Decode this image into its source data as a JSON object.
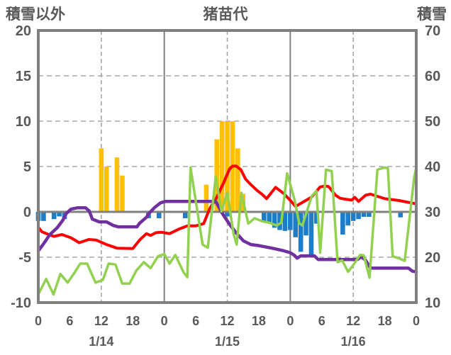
{
  "header": {
    "left_axis_label": "積雪以外",
    "title": "猪苗代",
    "right_axis_label": "積雪"
  },
  "colors": {
    "snowfall_bar": "#FFC000",
    "negative_bar": "#1D7DC8",
    "red_line": "#FF0000",
    "purple_line": "#7030A0",
    "green_line": "#92D050",
    "frame": "#808080",
    "zero_line": "#808080",
    "grid_dashed": "#A6A6A6",
    "text": "#595959",
    "background": "#FFFFFF"
  },
  "chart_data": {
    "type": "bar+line combo, dual axis",
    "title": "猪苗代",
    "x_axis": {
      "unit": "hours from 1/14 0:00",
      "range": [
        0,
        72
      ],
      "tick_hours": [
        0,
        6,
        12,
        18,
        24,
        30,
        36,
        42,
        48,
        54,
        60,
        66,
        72
      ],
      "tick_labels": [
        "0",
        "6",
        "12",
        "18",
        "0",
        "6",
        "12",
        "18",
        "0",
        "6",
        "12",
        "18",
        "0"
      ],
      "date_labels": [
        {
          "text": "1/14",
          "hour": 12
        },
        {
          "text": "1/15",
          "hour": 36
        },
        {
          "text": "1/16",
          "hour": 60
        }
      ],
      "solid_gridline_hours": [
        24,
        48
      ],
      "dashed_gridline_hours": [
        12,
        36,
        60
      ]
    },
    "left_axis": {
      "label": "積雪以外",
      "min": -10,
      "max": 20,
      "ticks": [
        20,
        15,
        10,
        5,
        0,
        -5,
        -10
      ],
      "tick_labels": [
        "20",
        "15",
        "10",
        "5",
        "0",
        "-5",
        "-10"
      ]
    },
    "right_axis": {
      "label": "積雪",
      "min": 10,
      "max": 70,
      "ticks": [
        70,
        60,
        50,
        40,
        30,
        20,
        10
      ],
      "tick_labels": [
        "70",
        "60",
        "50",
        "40",
        "30",
        "20",
        "10"
      ]
    },
    "grid": {
      "horizontal_dashed_values": [
        15,
        10,
        5,
        -5
      ],
      "zero_line_value": 0
    },
    "series": [
      {
        "name": "snowfall-bars",
        "type": "bar",
        "axis": "left",
        "color": "#FFC000",
        "points": [
          [
            12,
            7
          ],
          [
            13,
            5
          ],
          [
            15,
            6
          ],
          [
            16,
            4
          ],
          [
            32,
            3
          ],
          [
            34,
            8
          ],
          [
            35,
            10
          ],
          [
            36,
            10
          ],
          [
            37,
            10
          ],
          [
            38,
            7
          ],
          [
            39,
            2
          ]
        ]
      },
      {
        "name": "negative-bars",
        "type": "bar",
        "axis": "left",
        "color": "#1D7DC8",
        "points": [
          [
            0,
            -1
          ],
          [
            1,
            -1
          ],
          [
            3,
            -0.8
          ],
          [
            4,
            -0.5
          ],
          [
            5,
            -0.8
          ],
          [
            21,
            -0.7
          ],
          [
            23,
            -0.7
          ],
          [
            28,
            -0.7
          ],
          [
            36,
            -0.5
          ],
          [
            43,
            -1.1
          ],
          [
            44,
            -1.2
          ],
          [
            45,
            -1.75
          ],
          [
            46,
            -2
          ],
          [
            47,
            -2.1
          ],
          [
            48,
            -2
          ],
          [
            49,
            -2.8
          ],
          [
            50,
            -4.4
          ],
          [
            51,
            -2.6
          ],
          [
            52,
            -4.7
          ],
          [
            53,
            -1.3
          ],
          [
            58,
            -2.5
          ],
          [
            59,
            -1.5
          ],
          [
            60,
            -1
          ],
          [
            61,
            -0.8
          ],
          [
            62,
            -0.55
          ],
          [
            63,
            -0.55
          ],
          [
            69,
            -0.6
          ]
        ]
      },
      {
        "name": "red-line",
        "type": "line",
        "axis": "left",
        "color": "#FF0000",
        "points": [
          [
            0,
            -1.7
          ],
          [
            0.7,
            -2.2
          ],
          [
            2,
            -2.5
          ],
          [
            3,
            -2.7
          ],
          [
            4.5,
            -2.5
          ],
          [
            6.2,
            -2.85
          ],
          [
            7.8,
            -3.4
          ],
          [
            9.6,
            -3.05
          ],
          [
            11,
            -3.1
          ],
          [
            13,
            -3.6
          ],
          [
            15,
            -4
          ],
          [
            18,
            -4.05
          ],
          [
            19.3,
            -3.1
          ],
          [
            20.6,
            -2.4
          ],
          [
            21.4,
            -2.6
          ],
          [
            22.4,
            -2.3
          ],
          [
            23.5,
            -2.25
          ],
          [
            25,
            -2.4
          ],
          [
            26.8,
            -1.9
          ],
          [
            28.4,
            -1.55
          ],
          [
            30,
            -1.55
          ],
          [
            31.5,
            -1.3
          ],
          [
            32.6,
            0.3
          ],
          [
            34,
            1.6
          ],
          [
            35.3,
            3.2
          ],
          [
            36.4,
            4.7
          ],
          [
            37,
            5.05
          ],
          [
            37.7,
            5.05
          ],
          [
            38.6,
            4.65
          ],
          [
            39.5,
            3.6
          ],
          [
            40.5,
            3
          ],
          [
            41.6,
            2.4
          ],
          [
            42.7,
            1.9
          ],
          [
            43.5,
            1.45
          ],
          [
            45.2,
            2.7
          ],
          [
            46.7,
            2.05
          ],
          [
            48.1,
            1.2
          ],
          [
            49,
            0.6
          ],
          [
            50.5,
            1.1
          ],
          [
            52,
            1.6
          ],
          [
            53.7,
            2.75
          ],
          [
            54.6,
            2.85
          ],
          [
            55.3,
            2.8
          ],
          [
            56.6,
            1.85
          ],
          [
            57.5,
            1.5
          ],
          [
            58.5,
            1.4
          ],
          [
            59.7,
            1.3
          ],
          [
            60.3,
            1.6
          ],
          [
            61,
            1.15
          ],
          [
            62.4,
            1.85
          ],
          [
            63.3,
            1.95
          ],
          [
            66,
            1.45
          ],
          [
            68.7,
            1.25
          ],
          [
            71.4,
            0.95
          ],
          [
            72,
            0.9
          ]
        ]
      },
      {
        "name": "purple-line",
        "type": "line",
        "axis": "left",
        "color": "#7030A0",
        "points": [
          [
            0,
            -4.3
          ],
          [
            0.9,
            -3.6
          ],
          [
            2.2,
            -2.5
          ],
          [
            3.6,
            -1.75
          ],
          [
            4.7,
            -0.9
          ],
          [
            5.3,
            -0.2
          ],
          [
            6.2,
            0.3
          ],
          [
            7.5,
            0.45
          ],
          [
            9,
            0.45
          ],
          [
            9.7,
            0.1
          ],
          [
            10.3,
            -0.8
          ],
          [
            11.6,
            -1.1
          ],
          [
            13,
            -1.1
          ],
          [
            14.3,
            -1.5
          ],
          [
            15.2,
            -1.65
          ],
          [
            18.8,
            -1.65
          ],
          [
            19.3,
            -1.25
          ],
          [
            20.6,
            -0.6
          ],
          [
            21.1,
            -0.15
          ],
          [
            22.2,
            0.5
          ],
          [
            23.3,
            1
          ],
          [
            24.2,
            1.15
          ],
          [
            33.8,
            1.15
          ],
          [
            35.1,
            -0.2
          ],
          [
            36.4,
            -1.35
          ],
          [
            37.8,
            -2.4
          ],
          [
            39.1,
            -3.2
          ],
          [
            40.5,
            -3.6
          ],
          [
            41.8,
            -3.7
          ],
          [
            43.2,
            -3.85
          ],
          [
            44.5,
            -4
          ],
          [
            46.5,
            -4.25
          ],
          [
            48,
            -4.5
          ],
          [
            48.8,
            -4.8
          ],
          [
            49.3,
            -5.1
          ],
          [
            50,
            -4.85
          ],
          [
            52.6,
            -4.85
          ],
          [
            53.3,
            -5.25
          ],
          [
            60.8,
            -5.25
          ],
          [
            61.5,
            -4.95
          ],
          [
            62.3,
            -5.3
          ],
          [
            63.3,
            -6.2
          ],
          [
            70.5,
            -6.2
          ],
          [
            71.3,
            -6.55
          ],
          [
            72,
            -6.6
          ]
        ]
      },
      {
        "name": "green-line",
        "type": "line",
        "axis": "right",
        "color": "#92D050",
        "points": [
          [
            0,
            11.8
          ],
          [
            1.5,
            15.2
          ],
          [
            2.9,
            11.8
          ],
          [
            4.2,
            16.3
          ],
          [
            5.6,
            14.4
          ],
          [
            6.9,
            16.6
          ],
          [
            8,
            18.6
          ],
          [
            9.3,
            18.6
          ],
          [
            10.9,
            14.4
          ],
          [
            12.3,
            15
          ],
          [
            13.4,
            18.6
          ],
          [
            14.7,
            18.4
          ],
          [
            16,
            14.2
          ],
          [
            17.4,
            14.2
          ],
          [
            18.7,
            17.1
          ],
          [
            20.1,
            18.9
          ],
          [
            21.4,
            17.6
          ],
          [
            22.8,
            20.2
          ],
          [
            24,
            20.7
          ],
          [
            25,
            18.6
          ],
          [
            26.1,
            20.5
          ],
          [
            27.7,
            16.6
          ],
          [
            28.4,
            15.6
          ],
          [
            29,
            39.8
          ],
          [
            31.3,
            22.8
          ],
          [
            32.3,
            22.1
          ],
          [
            33.8,
            37.7
          ],
          [
            34.9,
            30.1
          ],
          [
            36,
            34.2
          ],
          [
            37.2,
            25.1
          ],
          [
            37.8,
            22.8
          ],
          [
            38.7,
            34.2
          ],
          [
            40,
            27.4
          ],
          [
            41.2,
            28.6
          ],
          [
            42.7,
            27.9
          ],
          [
            44,
            27.6
          ],
          [
            45.4,
            27
          ],
          [
            46.3,
            27.6
          ],
          [
            47.4,
            38.5
          ],
          [
            48.8,
            32.7
          ],
          [
            49.7,
            27.5
          ],
          [
            50.3,
            27
          ],
          [
            52.1,
            33.5
          ],
          [
            53,
            34.6
          ],
          [
            53.7,
            21
          ],
          [
            54.8,
            39.3
          ],
          [
            55.9,
            39
          ],
          [
            57,
            18.9
          ],
          [
            57.9,
            19.3
          ],
          [
            59,
            16.8
          ],
          [
            59.9,
            18.1
          ],
          [
            61.3,
            20.5
          ],
          [
            62,
            20.4
          ],
          [
            63.1,
            15.5
          ],
          [
            64.6,
            39.3
          ],
          [
            66,
            39.8
          ],
          [
            66.6,
            39.6
          ],
          [
            67.5,
            20.2
          ],
          [
            68.8,
            19.7
          ],
          [
            69.8,
            19.2
          ],
          [
            71.6,
            37.5
          ],
          [
            72,
            39.8
          ]
        ]
      }
    ]
  }
}
